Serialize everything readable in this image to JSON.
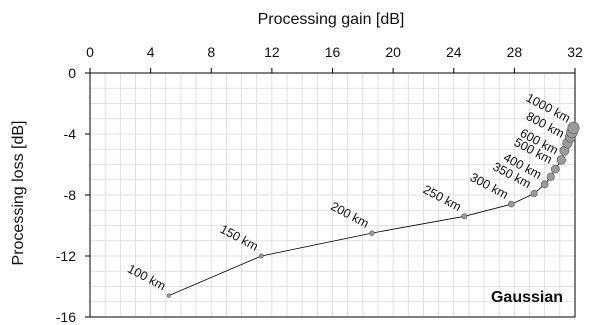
{
  "chart_data": {
    "type": "line",
    "xlabel": "Processing gain [dB]",
    "ylabel": "Processing loss [dB]",
    "xlim": [
      0,
      32
    ],
    "ylim": [
      -16,
      0
    ],
    "x_ticks": [
      "0",
      "4",
      "8",
      "12",
      "16",
      "20",
      "24",
      "28",
      "32"
    ],
    "y_ticks": [
      "0",
      "-4",
      "-8",
      "-12",
      "-16"
    ],
    "x_axis_position": "top",
    "grid": true,
    "annotation": "Gaussian",
    "annotation_position": "bottom-right",
    "series": [
      {
        "points": [
          {
            "label": "100 km",
            "x": 5.2,
            "y": -14.6
          },
          {
            "label": "150 km",
            "x": 11.3,
            "y": -12.0
          },
          {
            "label": "200 km",
            "x": 18.6,
            "y": -10.5
          },
          {
            "label": "250 km",
            "x": 24.7,
            "y": -9.4
          },
          {
            "label": "300 km",
            "x": 27.8,
            "y": -8.6
          },
          {
            "label": "350 km",
            "x": 29.3,
            "y": -7.9
          },
          {
            "label": "400 km",
            "x": 30.0,
            "y": -7.3
          },
          {
            "label": "",
            "x": 30.4,
            "y": -6.8
          },
          {
            "label": "500 km",
            "x": 30.7,
            "y": -6.3
          },
          {
            "label": "600 km",
            "x": 31.1,
            "y": -5.7
          },
          {
            "label": "",
            "x": 31.3,
            "y": -5.1
          },
          {
            "label": "800 km",
            "x": 31.5,
            "y": -4.6
          },
          {
            "label": "",
            "x": 31.7,
            "y": -4.2
          },
          {
            "label": "",
            "x": 31.8,
            "y": -3.9
          },
          {
            "label": "1000 km",
            "x": 31.9,
            "y": -3.6
          }
        ]
      }
    ],
    "colors": {
      "line": "#000000",
      "marker_fill": "#9a9a9a",
      "grid": "#d9d9d9",
      "axis": "#000000"
    }
  }
}
